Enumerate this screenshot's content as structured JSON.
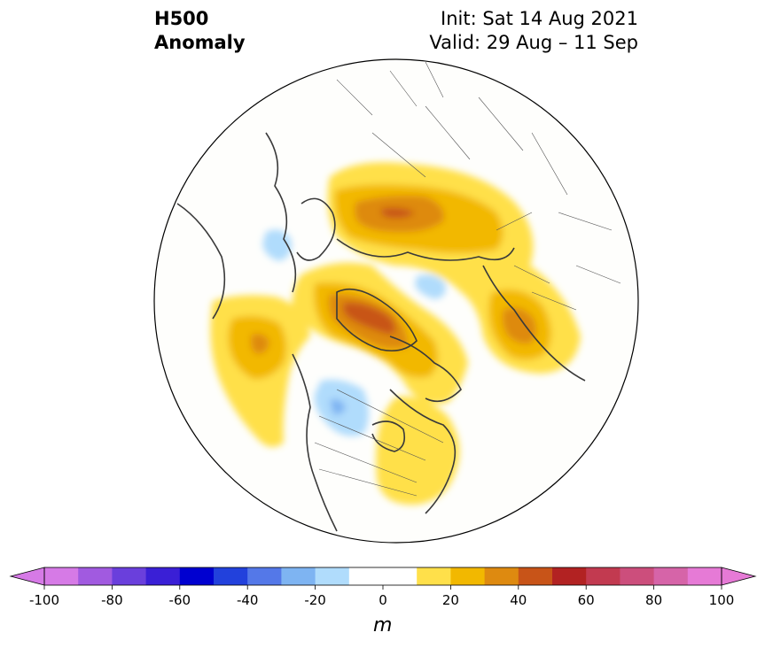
{
  "title": {
    "left_line1": "H500",
    "left_line2": "Anomaly",
    "right_line1": "Init: Sat 14 Aug 2021",
    "right_line2": "Valid: 29 Aug – 11 Sep"
  },
  "colorbar": {
    "unit": "m",
    "ticks": [
      "-100",
      "-80",
      "-60",
      "-40",
      "-20",
      "0",
      "20",
      "40",
      "60",
      "80",
      "100"
    ],
    "colors": [
      "#d67ae6",
      "#a15ae0",
      "#6a3fdc",
      "#3a1fd6",
      "#0000d0",
      "#2241dc",
      "#5478e8",
      "#7eb4f2",
      "#b0dcfc",
      "#ffffff",
      "#ffffff",
      "#ffe04a",
      "#f2b800",
      "#de8a10",
      "#c85418",
      "#b22222",
      "#c23a50",
      "#cc4e7c",
      "#d664a8",
      "#e67ad6"
    ],
    "extend_low_color": "#d67ae6",
    "extend_high_color": "#e67ad6"
  },
  "map": {
    "projection": "north-polar-stereographic",
    "colors": {
      "land": "#fefefc",
      "coast": "#3a3a3a",
      "boundary": "#555555"
    }
  }
}
